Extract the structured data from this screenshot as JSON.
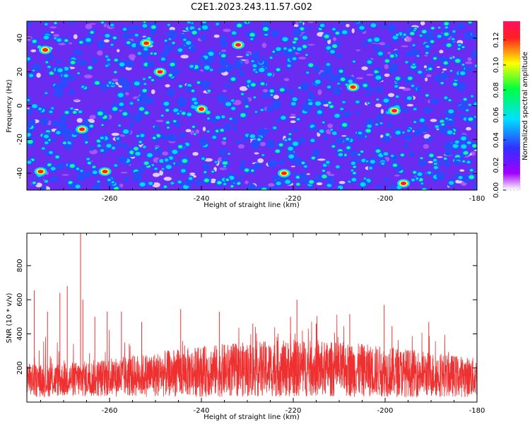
{
  "figure_title": "C2E1.2023.243.11.57.G02",
  "chart_data": [
    {
      "type": "heatmap",
      "title": "",
      "xlabel": "Height of straight line (km)",
      "ylabel": "Frequency (Hz)",
      "xlim": [
        -278,
        -180
      ],
      "ylim": [
        -50,
        50
      ],
      "x_ticks": [
        -260,
        -240,
        -220,
        -200,
        -180
      ],
      "y_ticks": [
        -40,
        -20,
        0,
        20,
        40
      ],
      "colorbar": {
        "label": "Normalized spectral amplitude",
        "range": [
          0.0,
          0.135
        ],
        "ticks": [
          "0.00",
          "0.02",
          "0.04",
          "0.06",
          "0.08",
          "0.10",
          "0.12"
        ],
        "colormap": [
          "#ffffff",
          "#a000ff",
          "#3030ff",
          "#00e0ff",
          "#00ff40",
          "#ffff00",
          "#ff2020",
          "#ff1060"
        ]
      },
      "description_values": {
        "background_level": 0.02,
        "typical_blob_level": 0.05,
        "peak_level": 0.13
      },
      "hotspots": [
        {
          "x": -266,
          "y": -14,
          "level": 0.13
        },
        {
          "x": -249,
          "y": 20,
          "level": 0.13
        },
        {
          "x": -240,
          "y": -2,
          "level": 0.13
        },
        {
          "x": -232,
          "y": 36,
          "level": 0.12
        },
        {
          "x": -222,
          "y": -40,
          "level": 0.11
        },
        {
          "x": -198,
          "y": -3,
          "level": 0.13
        },
        {
          "x": -196,
          "y": -46,
          "level": 0.13
        },
        {
          "x": -261,
          "y": -39,
          "level": 0.11
        },
        {
          "x": -275,
          "y": -39,
          "level": 0.11
        },
        {
          "x": -274,
          "y": 33,
          "level": 0.1
        },
        {
          "x": -207,
          "y": 11,
          "level": 0.1
        },
        {
          "x": -252,
          "y": 37,
          "level": 0.1
        }
      ]
    },
    {
      "type": "line",
      "title": "",
      "xlabel": "Height of straight line (km)",
      "ylabel": "SNR (10 * v/v)",
      "xlim": [
        -278,
        -180
      ],
      "ylim": [
        0,
        990
      ],
      "x_ticks": [
        -260,
        -240,
        -220,
        -200,
        -180
      ],
      "y_ticks": [
        200,
        400,
        600,
        800
      ],
      "series": [
        {
          "color": "#ee3030",
          "baseline_mean": 180,
          "noise_floor": 30,
          "peaks": [
            {
              "x": -266.3,
              "y": 990
            },
            {
              "x": -269.2,
              "y": 680
            },
            {
              "x": -276.4,
              "y": 655
            },
            {
              "x": -270.8,
              "y": 640
            },
            {
              "x": -265.8,
              "y": 600
            },
            {
              "x": -219.2,
              "y": 600
            },
            {
              "x": -200.2,
              "y": 570
            },
            {
              "x": -244.5,
              "y": 545
            },
            {
              "x": -273.5,
              "y": 530
            },
            {
              "x": -257.4,
              "y": 530
            },
            {
              "x": -236.1,
              "y": 530
            },
            {
              "x": -260.5,
              "y": 530
            },
            {
              "x": -207.7,
              "y": 515
            },
            {
              "x": -220.6,
              "y": 500
            },
            {
              "x": -263.2,
              "y": 500
            },
            {
              "x": -253.0,
              "y": 470
            },
            {
              "x": -190.5,
              "y": 470
            },
            {
              "x": -228.8,
              "y": 460
            },
            {
              "x": -215.0,
              "y": 460
            },
            {
              "x": -198.5,
              "y": 445
            }
          ]
        }
      ]
    }
  ]
}
